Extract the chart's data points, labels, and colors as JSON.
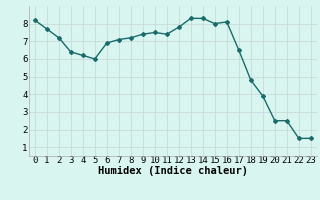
{
  "x": [
    0,
    1,
    2,
    3,
    4,
    5,
    6,
    7,
    8,
    9,
    10,
    11,
    12,
    13,
    14,
    15,
    16,
    17,
    18,
    19,
    20,
    21,
    22,
    23
  ],
  "y": [
    8.2,
    7.7,
    7.2,
    6.4,
    6.2,
    6.0,
    6.9,
    7.1,
    7.2,
    7.4,
    7.5,
    7.4,
    7.8,
    8.3,
    8.3,
    8.0,
    8.1,
    6.5,
    4.8,
    3.9,
    2.5,
    2.5,
    1.5,
    1.5
  ],
  "line_color": "#1a6b6b",
  "marker": "D",
  "marker_size": 2,
  "bg_color": "#d9f5f0",
  "grid_color": "#c8dada",
  "grid_color_minor": "#dce8e8",
  "xlabel": "Humidex (Indice chaleur)",
  "xlim": [
    -0.5,
    23.5
  ],
  "ylim": [
    0.5,
    9.0
  ],
  "yticks": [
    1,
    2,
    3,
    4,
    5,
    6,
    7,
    8
  ],
  "xticks": [
    0,
    1,
    2,
    3,
    4,
    5,
    6,
    7,
    8,
    9,
    10,
    11,
    12,
    13,
    14,
    15,
    16,
    17,
    18,
    19,
    20,
    21,
    22,
    23
  ],
  "xlabel_fontsize": 7.5,
  "tick_fontsize": 6.5,
  "line_width": 1.0
}
